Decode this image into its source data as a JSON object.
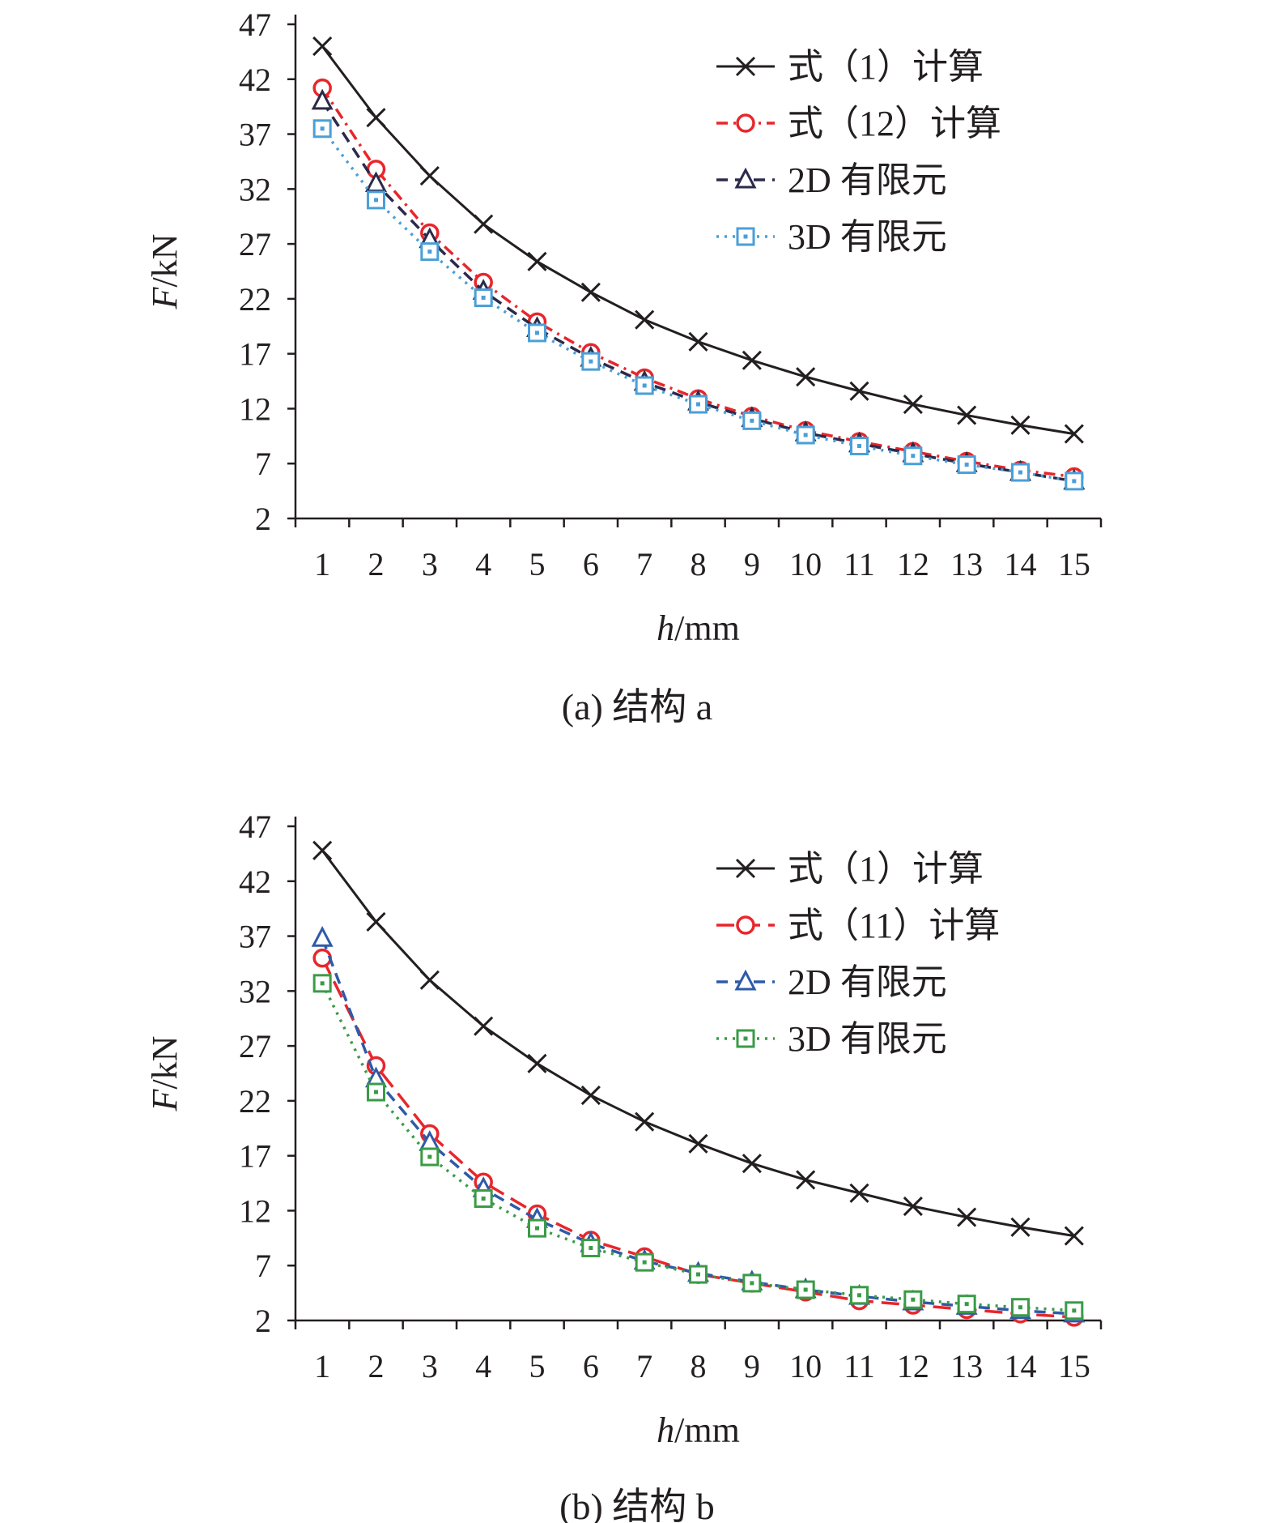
{
  "chart_data": [
    {
      "type": "line",
      "caption": "(a) 结构 a",
      "xlabel": {
        "var": "h",
        "unit": "/mm"
      },
      "ylabel": {
        "var": "F",
        "unit": "/kN"
      },
      "x": [
        1,
        2,
        3,
        4,
        5,
        6,
        7,
        8,
        9,
        10,
        11,
        12,
        13,
        14,
        15
      ],
      "yticks": [
        2,
        7,
        12,
        17,
        22,
        27,
        32,
        37,
        42,
        47
      ],
      "ylim": [
        2,
        47
      ],
      "grid": false,
      "legend_position": "top-right",
      "series": [
        {
          "name": "式（1）计算",
          "color": "#231f20",
          "marker": "x",
          "dash": "solid",
          "values": [
            45.0,
            38.5,
            33.2,
            28.8,
            25.4,
            22.6,
            20.1,
            18.1,
            16.4,
            14.9,
            13.6,
            12.4,
            11.4,
            10.5,
            9.7
          ]
        },
        {
          "name": "式（12）计算",
          "color": "#e8262b",
          "marker": "circle",
          "dash": "dashdot",
          "values": [
            41.2,
            33.8,
            28.0,
            23.5,
            19.9,
            17.1,
            14.8,
            12.9,
            11.3,
            10.0,
            9.0,
            8.1,
            7.2,
            6.4,
            5.8
          ]
        },
        {
          "name": "2D 有限元",
          "color": "#2b2a4a",
          "marker": "triangle",
          "dash": "dash",
          "values": [
            40.0,
            32.5,
            27.4,
            22.7,
            19.3,
            16.6,
            14.4,
            12.6,
            11.1,
            9.8,
            8.8,
            7.9,
            7.0,
            6.2,
            5.4
          ]
        },
        {
          "name": "3D 有限元",
          "color": "#4a9fd8",
          "marker": "square",
          "dash": "dot",
          "values": [
            37.5,
            31.0,
            26.3,
            22.1,
            18.9,
            16.3,
            14.1,
            12.4,
            10.9,
            9.6,
            8.6,
            7.7,
            6.9,
            6.2,
            5.4
          ]
        }
      ]
    },
    {
      "type": "line",
      "caption": "(b) 结构 b",
      "xlabel": {
        "var": "h",
        "unit": "/mm"
      },
      "ylabel": {
        "var": "F",
        "unit": "/kN"
      },
      "x": [
        1,
        2,
        3,
        4,
        5,
        6,
        7,
        8,
        9,
        10,
        11,
        12,
        13,
        14,
        15
      ],
      "yticks": [
        2,
        7,
        12,
        17,
        22,
        27,
        32,
        37,
        42,
        47
      ],
      "ylim": [
        2,
        47
      ],
      "grid": false,
      "legend_position": "top-right",
      "series": [
        {
          "name": "式（1）计算",
          "color": "#231f20",
          "marker": "x",
          "dash": "solid",
          "values": [
            44.8,
            38.3,
            33.0,
            28.8,
            25.4,
            22.5,
            20.1,
            18.1,
            16.3,
            14.8,
            13.6,
            12.4,
            11.4,
            10.5,
            9.7
          ]
        },
        {
          "name": "式（11）计算",
          "color": "#e8262b",
          "marker": "circle",
          "dash": "longdash",
          "values": [
            35.0,
            25.2,
            19.0,
            14.6,
            11.7,
            9.3,
            7.8,
            6.2,
            5.4,
            4.6,
            3.8,
            3.4,
            3.0,
            2.6,
            2.3
          ]
        },
        {
          "name": "2D 有限元",
          "color": "#2f5aa8",
          "marker": "triangle",
          "dash": "dash",
          "values": [
            36.8,
            24.0,
            18.2,
            14.0,
            11.2,
            9.0,
            7.4,
            6.3,
            5.5,
            4.8,
            4.2,
            3.7,
            3.3,
            2.9,
            2.6
          ]
        },
        {
          "name": "3D 有限元",
          "color": "#3a9b46",
          "marker": "square",
          "dash": "dot",
          "values": [
            32.7,
            22.8,
            16.9,
            13.1,
            10.4,
            8.6,
            7.3,
            6.2,
            5.4,
            4.8,
            4.3,
            3.9,
            3.5,
            3.2,
            2.9
          ]
        }
      ]
    }
  ]
}
